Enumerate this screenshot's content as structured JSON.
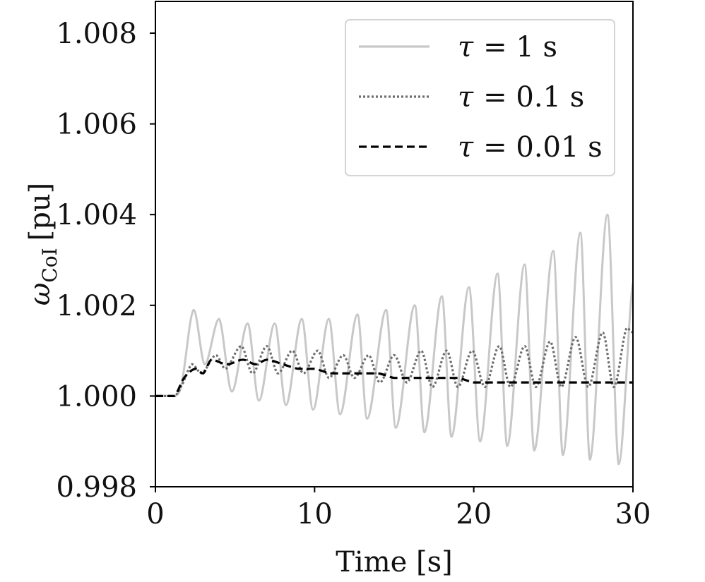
{
  "chart_data": {
    "type": "line",
    "xlabel": "Time [s]",
    "ylabel": "ω_CoI [pu]",
    "ylabel_main": "ω",
    "ylabel_sub": "CoI",
    "ylabel_unit": "[pu]",
    "xlim": [
      0,
      30
    ],
    "ylim": [
      0.998,
      1.0087
    ],
    "xticks": [
      0,
      10,
      20,
      30
    ],
    "xtick_labels": [
      "0",
      "10",
      "20",
      "30"
    ],
    "yticks": [
      0.998,
      1.0,
      1.002,
      1.004,
      1.006,
      1.008
    ],
    "ytick_labels": [
      "0.998",
      "1.000",
      "1.002",
      "1.004",
      "1.006",
      "1.008"
    ],
    "grid": false,
    "legend_position": "top-right",
    "series": [
      {
        "name": "τ = 1 s",
        "legend_symbol": "τ",
        "legend_value": "= 1 s",
        "color": "#c8c8c8",
        "style": "solid",
        "x": [
          0,
          1.2,
          1.6,
          2.4,
          3.1,
          4.0,
          4.8,
          5.8,
          6.5,
          7.5,
          8.2,
          9.2,
          9.9,
          10.9,
          11.6,
          12.7,
          13.3,
          14.5,
          15.1,
          16.3,
          16.9,
          18.0,
          18.6,
          19.7,
          20.4,
          21.5,
          22.1,
          23.2,
          23.8,
          25.0,
          25.6,
          26.7,
          27.3,
          28.4,
          29.1,
          30.0
        ],
        "y": [
          1.0,
          1.0,
          1.0002,
          1.0019,
          1.0007,
          1.0017,
          1.0001,
          1.0016,
          0.9999,
          1.0016,
          0.9998,
          1.0017,
          0.9997,
          1.0017,
          0.9996,
          1.0018,
          0.9995,
          1.0019,
          0.9993,
          1.002,
          0.9992,
          1.0022,
          0.9991,
          1.0024,
          0.999,
          1.0027,
          0.9989,
          1.0029,
          0.9988,
          1.0032,
          0.9987,
          1.0036,
          0.9986,
          1.004,
          0.9985,
          1.0025
        ]
      },
      {
        "name": "τ = 0.1 s",
        "legend_symbol": "τ",
        "legend_value": "= 0.1 s",
        "color": "#6e6e6e",
        "style": "dotted",
        "x": [
          0,
          1.2,
          1.6,
          2.3,
          2.9,
          3.8,
          4.4,
          5.4,
          6.1,
          7.0,
          7.7,
          8.6,
          9.3,
          10.2,
          10.9,
          11.8,
          12.5,
          13.4,
          14.1,
          15.0,
          15.8,
          16.7,
          17.4,
          18.3,
          19.0,
          19.9,
          20.7,
          21.6,
          22.3,
          23.2,
          23.9,
          24.8,
          25.5,
          26.4,
          27.2,
          28.1,
          28.8,
          29.6,
          30.0
        ],
        "y": [
          1.0,
          1.0,
          1.0002,
          1.0007,
          1.0005,
          1.0009,
          1.0006,
          1.0011,
          1.0005,
          1.0011,
          1.0005,
          1.001,
          1.0005,
          1.001,
          1.0004,
          1.0009,
          1.0004,
          1.0009,
          1.0003,
          1.0009,
          1.0003,
          1.001,
          1.0002,
          1.001,
          1.0002,
          1.001,
          1.0002,
          1.0011,
          1.0002,
          1.0011,
          1.0002,
          1.0012,
          1.0002,
          1.0013,
          1.0002,
          1.0014,
          1.0002,
          1.0015,
          1.0014
        ]
      },
      {
        "name": "τ = 0.01 s",
        "legend_symbol": "τ",
        "legend_value": "= 0.01 s",
        "color": "#000000",
        "style": "dashed",
        "x": [
          0,
          1.2,
          1.8,
          2.5,
          3.0,
          3.5,
          4.5,
          5.5,
          6.3,
          7.0,
          8.0,
          9.0,
          10.0,
          11.0,
          12.0,
          13.0,
          14.0,
          15.0,
          16.0,
          17.0,
          18.0,
          19.0,
          20.0,
          21.0,
          22.0,
          23.0,
          24.0,
          25.0,
          26.0,
          27.0,
          28.0,
          29.0,
          30.0
        ],
        "y": [
          1.0,
          1.0,
          1.0004,
          1.0006,
          1.0005,
          1.0008,
          1.0007,
          1.0008,
          1.0007,
          1.0008,
          1.0007,
          1.0006,
          1.0006,
          1.0005,
          1.0005,
          1.0005,
          1.0005,
          1.0004,
          1.0004,
          1.0004,
          1.0004,
          1.0004,
          1.0003,
          1.0003,
          1.0003,
          1.0003,
          1.0003,
          1.0003,
          1.0003,
          1.0003,
          1.0003,
          1.0003,
          1.0003
        ]
      }
    ]
  }
}
